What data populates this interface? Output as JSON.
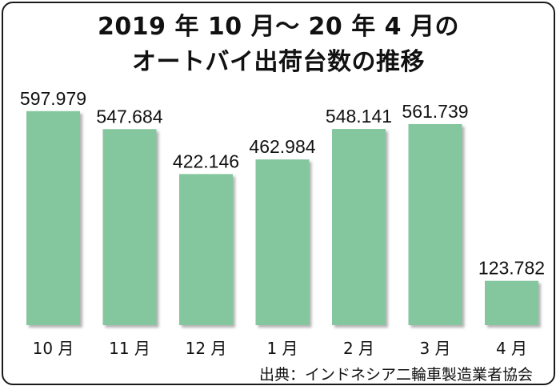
{
  "chart_data": {
    "type": "bar",
    "title_lines": [
      "2019 年 10 月〜 20 年 4 月の",
      "オートバイ出荷台数の推移"
    ],
    "categories": [
      "10 月",
      "11 月",
      "12 月",
      "1 月",
      "2 月",
      "3 月",
      "4 月"
    ],
    "values": [
      597979,
      547684,
      422146,
      462984,
      548141,
      561739,
      123782
    ],
    "value_labels": [
      "597.979",
      "547.684",
      "422.146",
      "462.984",
      "548.141",
      "561.739",
      "123.782"
    ],
    "ylim": [
      0,
      640000
    ],
    "grid": false,
    "legend": "none",
    "colors": {
      "bar": "#84c69d",
      "bar_shadow": "#9a9a9a",
      "text": "#111111"
    },
    "source": "出典：インドネシア二輪車製造業者協会"
  }
}
